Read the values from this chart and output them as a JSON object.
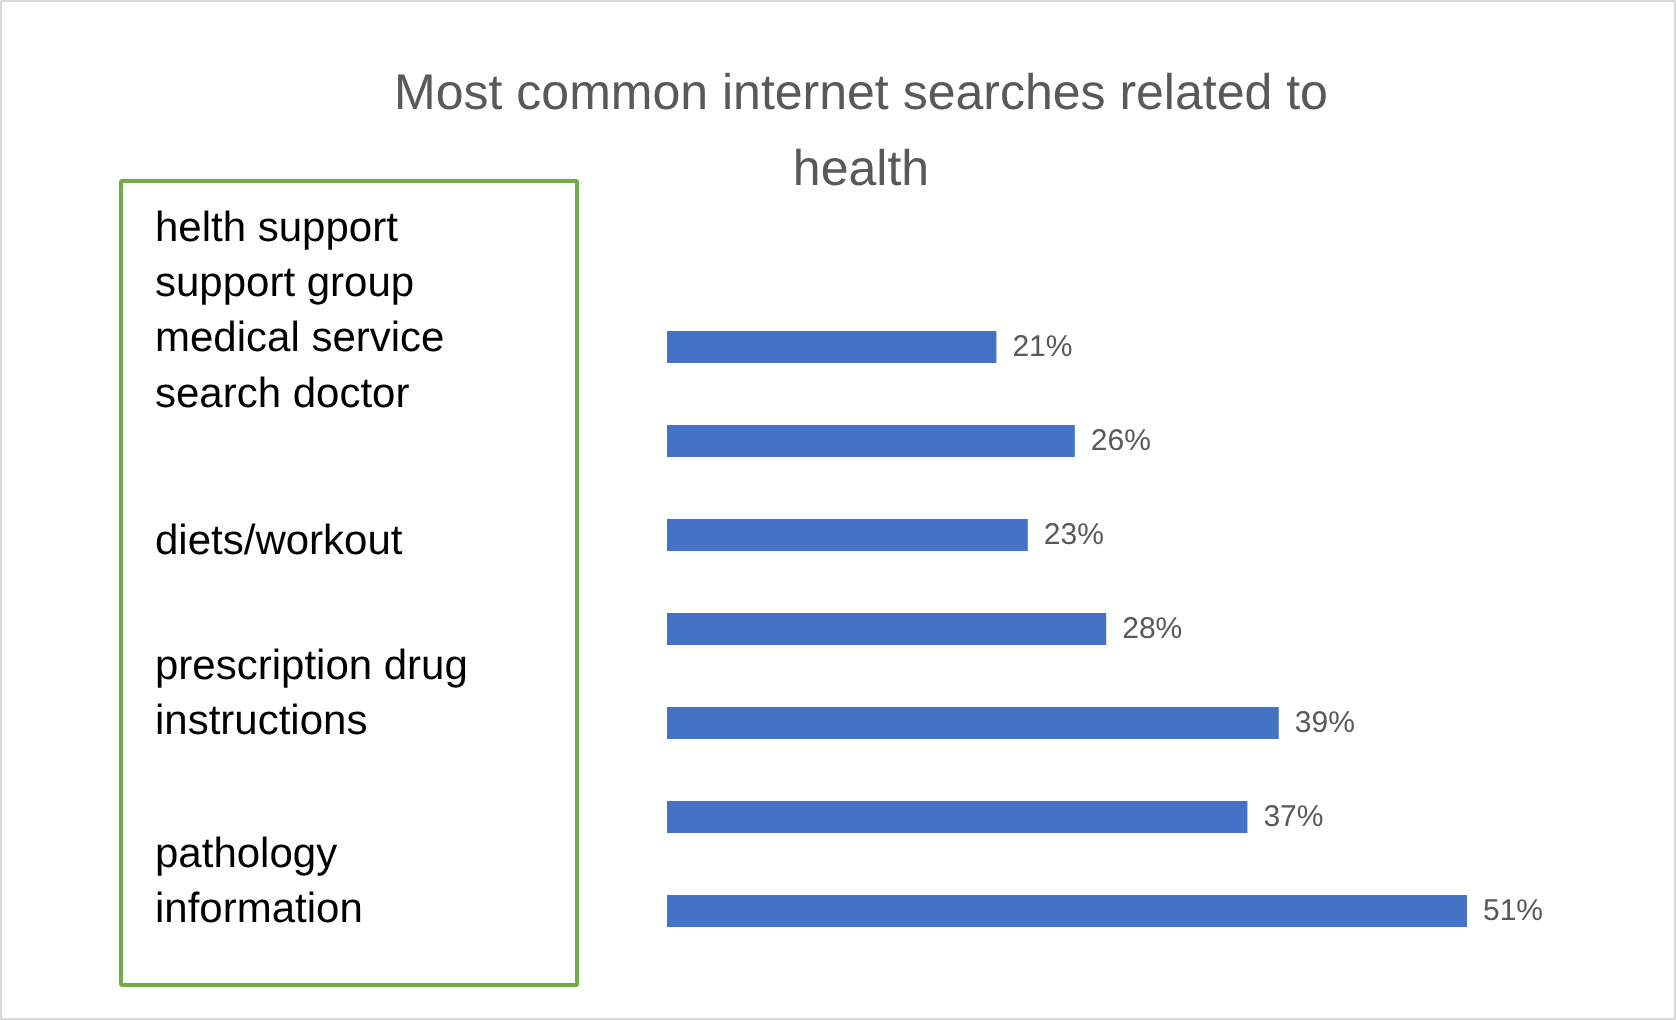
{
  "chart_data": {
    "type": "bar",
    "orientation": "horizontal",
    "title": "Most common internet searches related to health",
    "categories": [
      null,
      null,
      null,
      null,
      null,
      null,
      null
    ],
    "values": [
      21,
      26,
      23,
      28,
      39,
      37,
      51
    ],
    "value_labels": [
      "21%",
      "26%",
      "23%",
      "28%",
      "39%",
      "37%",
      "51%"
    ],
    "color": "#4472c4",
    "grid": false,
    "tick_labels": false,
    "annotations": [
      "helth support\nsupport group\nmedical service\nsearch doctor",
      "diets/workout",
      "prescription drug\ninstructions",
      "pathology\ninformation"
    ]
  }
}
